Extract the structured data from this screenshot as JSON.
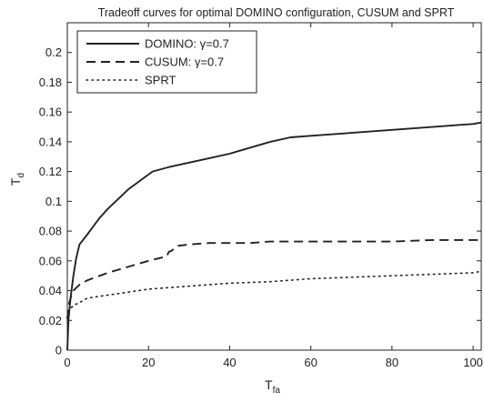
{
  "chart_data": {
    "type": "line",
    "title": "Tradeoff curves for optimal DOMINO configuration, CUSUM and SPRT",
    "xlabel": "T",
    "xlabel_sub": "fa",
    "ylabel": "T",
    "ylabel_sub": "d",
    "xlim": [
      0,
      102
    ],
    "ylim": [
      0,
      0.22
    ],
    "x_ticks": [
      0,
      20,
      40,
      60,
      80,
      100
    ],
    "x_tick_labels": [
      "0",
      "20",
      "40",
      "60",
      "80",
      "100"
    ],
    "y_ticks": [
      0,
      0.02,
      0.04,
      0.06,
      0.08,
      0.1,
      0.12,
      0.14,
      0.16,
      0.18,
      0.2
    ],
    "y_tick_labels": [
      "0",
      "0.02",
      "0.04",
      "0.06",
      "0.08",
      "0.1",
      "0.12",
      "0.14",
      "0.16",
      "0.18",
      "0.2"
    ],
    "grid": false,
    "legend_position": "top-left",
    "series": [
      {
        "name": "DOMINO: γ=0.7",
        "style": "solid",
        "color": "#222222",
        "x": [
          0,
          0.3,
          0.8,
          1.5,
          2.2,
          3,
          5,
          8,
          10,
          15,
          20,
          21,
          25,
          30,
          35,
          40,
          45,
          50,
          55,
          60,
          70,
          80,
          90,
          100,
          102
        ],
        "y": [
          0,
          0.021,
          0.035,
          0.05,
          0.062,
          0.071,
          0.078,
          0.089,
          0.095,
          0.108,
          0.118,
          0.12,
          0.123,
          0.126,
          0.129,
          0.132,
          0.136,
          0.14,
          0.143,
          0.144,
          0.146,
          0.148,
          0.15,
          0.152,
          0.153
        ]
      },
      {
        "name": "CUSUM: γ=0.7",
        "style": "dashed",
        "color": "#222222",
        "x": [
          0,
          0.3,
          0.8,
          1.5,
          3,
          5,
          10,
          15,
          20,
          24.5,
          25,
          25.8,
          27,
          30,
          35,
          40,
          45,
          50,
          55,
          60,
          70,
          80,
          90,
          100,
          102
        ],
        "y": [
          0.021,
          0.03,
          0.035,
          0.04,
          0.044,
          0.047,
          0.052,
          0.056,
          0.06,
          0.063,
          0.066,
          0.067,
          0.07,
          0.071,
          0.072,
          0.072,
          0.072,
          0.073,
          0.073,
          0.073,
          0.073,
          0.073,
          0.074,
          0.074,
          0.074
        ]
      },
      {
        "name": "SPRT",
        "style": "dotted",
        "color": "#222222",
        "x": [
          0,
          0.5,
          1.5,
          3,
          5,
          10,
          15,
          20,
          30,
          40,
          50,
          60,
          70,
          80,
          90,
          100,
          102
        ],
        "y": [
          0.022,
          0.027,
          0.03,
          0.032,
          0.035,
          0.037,
          0.039,
          0.041,
          0.043,
          0.045,
          0.046,
          0.048,
          0.049,
          0.05,
          0.051,
          0.052,
          0.053
        ]
      }
    ],
    "legend_items": [
      {
        "label": "DOMINO: γ=0.7",
        "style": "solid"
      },
      {
        "label": "CUSUM: γ=0.7",
        "style": "dashed"
      },
      {
        "label": "SPRT",
        "style": "dotted"
      }
    ]
  }
}
